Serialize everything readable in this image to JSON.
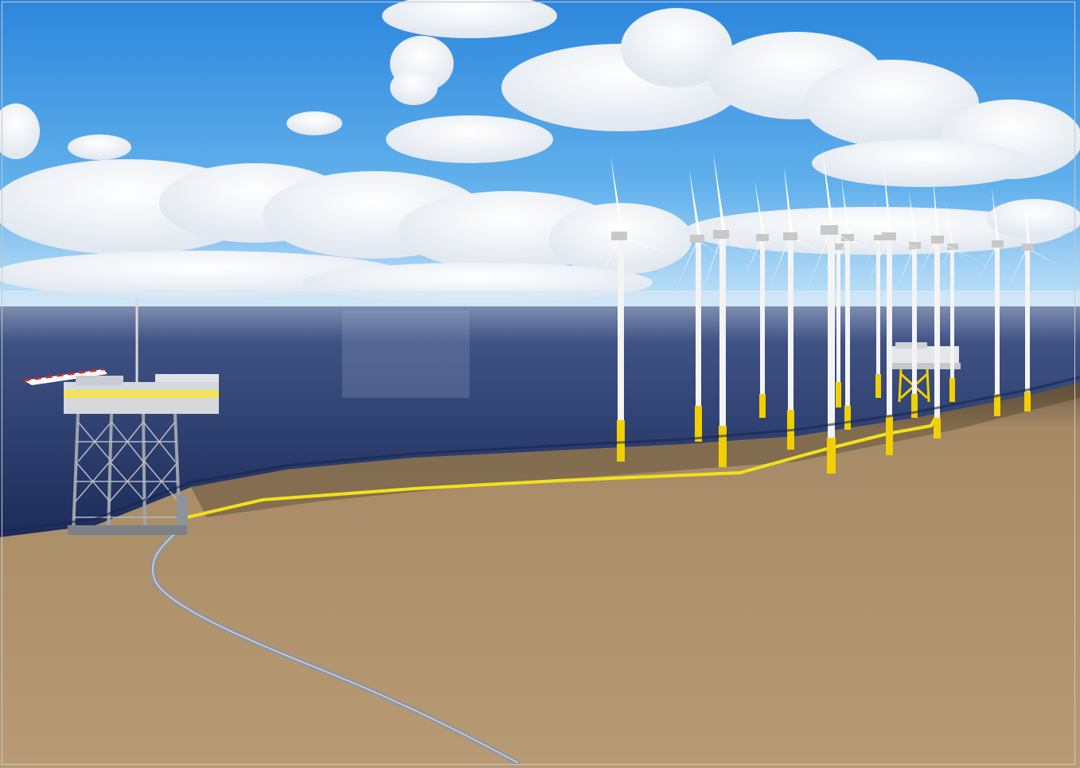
{
  "scene": {
    "subject": "offshore-wind-farm-with-platforms-and-seabed-cable",
    "colors": {
      "sky_top": "#2f8fe0",
      "sky_horizon": "#bfe0f7",
      "sea_surface_far": "#5c6f9a",
      "sea_surface_near": "#1c2c5a",
      "seabed_sand": "#b39670",
      "seabed_shadow": "#4a3e30",
      "cable_yellow": "#f2e21a",
      "export_cable_grey": "#8a93a6",
      "turbine_white": "#f4f4f4",
      "foundation_yellow": "#f0d000",
      "platform_steel": "#b9bcc2",
      "platform_accent_yellow": "#f1e35a",
      "helideck_stripe_red": "#d22b1e"
    },
    "icons": [
      "wind-turbine-icon",
      "offshore-platform-icon",
      "substation-icon",
      "cloud-icon"
    ]
  }
}
